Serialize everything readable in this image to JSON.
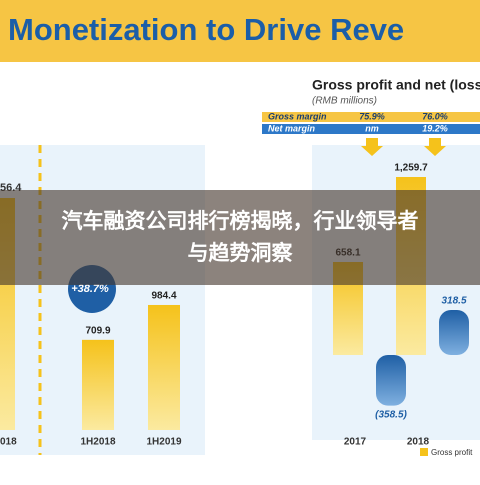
{
  "header": {
    "title": "Monetization to Drive Reve"
  },
  "overlay": {
    "title": "汽车融资公司排行榜揭晓，行业领导者与趋势洞察"
  },
  "left_chart": {
    "cropped_label": "56.4",
    "cropped_category": "018",
    "growth": "+38.7%",
    "categories": [
      "1H2018",
      "1H2019"
    ],
    "values": [
      709.9,
      984.4
    ]
  },
  "right_chart": {
    "title": "Gross profit and net (loss",
    "subtitle": "(RMB millions)",
    "table": {
      "rows": [
        [
          "Gross margin",
          "75.9%",
          "76.0%"
        ],
        [
          "Net margin",
          "nm",
          "19.2%"
        ]
      ]
    },
    "categories": [
      "2017",
      "2018"
    ],
    "series": [
      {
        "name": "Gross profit",
        "color": "#f5c21b",
        "values": [
          658.1,
          1259.7
        ],
        "value_labels": [
          "658.1",
          "1,259.7"
        ]
      },
      {
        "color": "#1f5fa5",
        "values": [
          -358.5,
          318.5
        ],
        "value_labels": [
          "(358.5)",
          "318.5"
        ]
      }
    ]
  }
}
